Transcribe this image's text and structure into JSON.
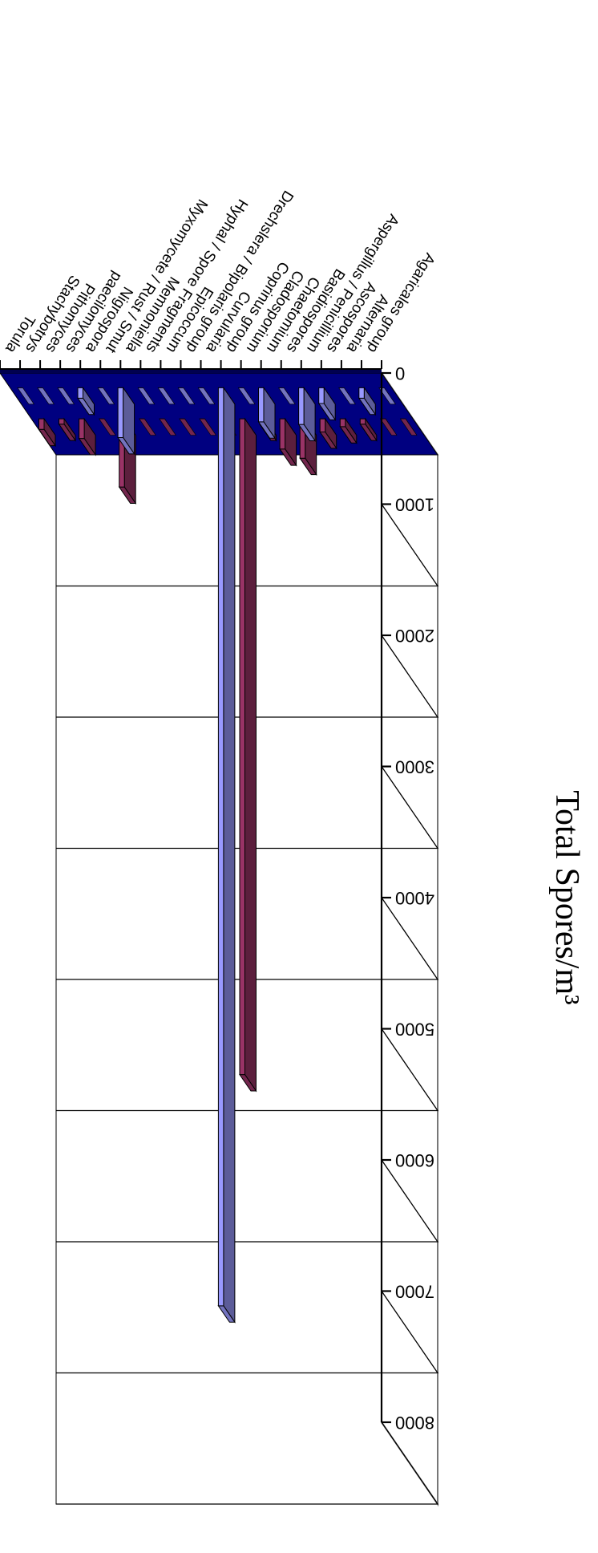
{
  "chart_data": {
    "type": "bar",
    "title": "",
    "ylabel": "Total Spores/m³",
    "xlabel": "",
    "ylim": [
      0,
      8000
    ],
    "yticks": [
      0,
      1000,
      2000,
      3000,
      4000,
      5000,
      6000,
      7000,
      8000
    ],
    "grid": true,
    "orientation": "rotated-180",
    "categories": [
      "Agaricales group",
      "Alternaria",
      "Ascospores",
      "Aspergillus / Penicillium",
      "Basidiospores",
      "Chaetomium",
      "Cladosporium",
      "Coprinus group",
      "Curvularia",
      "Drechslera / Bipolaris group",
      "Epicoccum",
      "Hyphal / Spore Fragments",
      "Memnoniella",
      "Myxomycete / Rust / Smut",
      "Nigrospora",
      "paecilomyces",
      "Pithomyces",
      "Stachybotrys",
      "Torula"
    ],
    "series": [
      {
        "color": "#9999ff",
        "values": [
          0,
          80,
          0,
          120,
          280,
          0,
          260,
          0,
          7000,
          0,
          0,
          0,
          0,
          380,
          0,
          80,
          0,
          0,
          0
        ]
      },
      {
        "color": "#993366",
        "values": [
          0,
          0,
          40,
          60,
          100,
          300,
          230,
          40,
          5000,
          0,
          0,
          0,
          0,
          0,
          520,
          0,
          150,
          40,
          80
        ]
      }
    ],
    "wall_color": "#ffffff",
    "floor_color": "#000080"
  }
}
